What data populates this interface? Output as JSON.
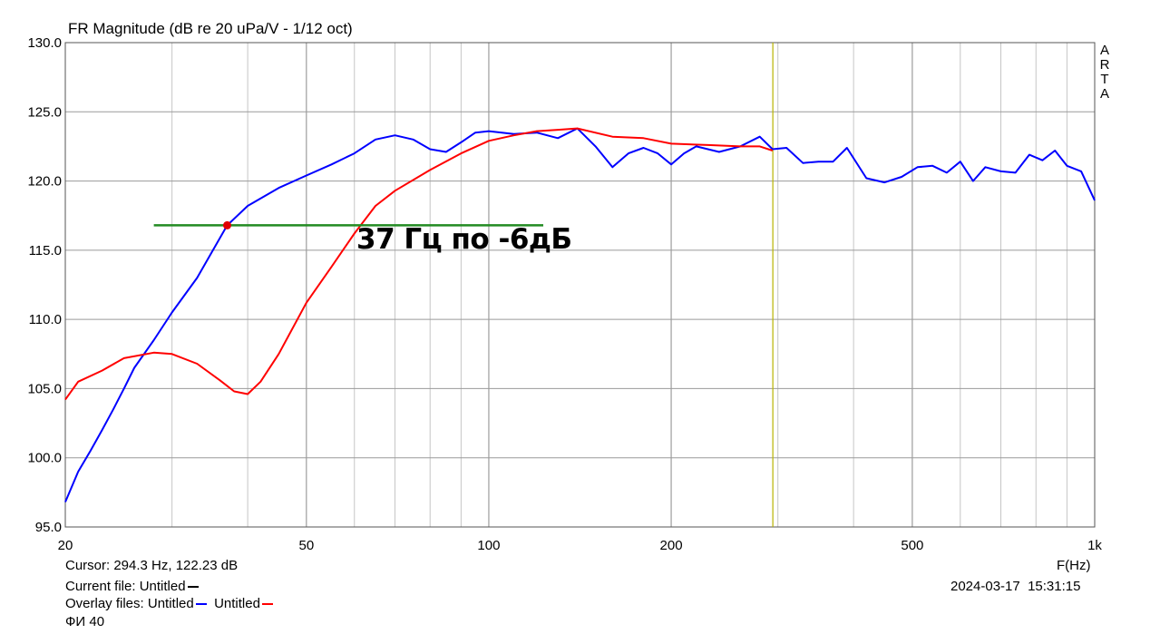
{
  "chart_data": {
    "type": "line",
    "title": "FR Magnitude (dB re 20 uPa/V - 1/12 oct)",
    "xlabel": "F(Hz)",
    "ylabel": "",
    "x_scale": "log",
    "xlim": [
      20,
      1000
    ],
    "ylim": [
      95,
      130
    ],
    "grid": true,
    "x_ticks": [
      {
        "value": 20,
        "label": "20"
      },
      {
        "value": 50,
        "label": "50"
      },
      {
        "value": 100,
        "label": "100"
      },
      {
        "value": 200,
        "label": "200"
      },
      {
        "value": 500,
        "label": "500"
      },
      {
        "value": 1000,
        "label": "1k"
      }
    ],
    "y_ticks": [
      {
        "value": 95,
        "label": "95.0"
      },
      {
        "value": 100,
        "label": "100.0"
      },
      {
        "value": 105,
        "label": "105.0"
      },
      {
        "value": 110,
        "label": "110.0"
      },
      {
        "value": 115,
        "label": "115.0"
      },
      {
        "value": 120,
        "label": "120.0"
      },
      {
        "value": 125,
        "label": "125.0"
      },
      {
        "value": 130,
        "label": "130.0"
      }
    ],
    "series": [
      {
        "color": "#0000ff",
        "points": [
          [
            20,
            96.8
          ],
          [
            21,
            99
          ],
          [
            22,
            100.5
          ],
          [
            23,
            102
          ],
          [
            24,
            103.5
          ],
          [
            25,
            105
          ],
          [
            26,
            106.5
          ],
          [
            28,
            108.5
          ],
          [
            30,
            110.5
          ],
          [
            33,
            113
          ],
          [
            37,
            116.8
          ],
          [
            40,
            118.2
          ],
          [
            45,
            119.5
          ],
          [
            50,
            120.4
          ],
          [
            55,
            121.2
          ],
          [
            60,
            122
          ],
          [
            65,
            123
          ],
          [
            70,
            123.3
          ],
          [
            75,
            123
          ],
          [
            80,
            122.3
          ],
          [
            85,
            122.1
          ],
          [
            90,
            122.8
          ],
          [
            95,
            123.5
          ],
          [
            100,
            123.6
          ],
          [
            110,
            123.4
          ],
          [
            120,
            123.5
          ],
          [
            130,
            123.1
          ],
          [
            140,
            123.8
          ],
          [
            150,
            122.5
          ],
          [
            160,
            121
          ],
          [
            170,
            122
          ],
          [
            180,
            122.4
          ],
          [
            190,
            122
          ],
          [
            200,
            121.2
          ],
          [
            210,
            122
          ],
          [
            220,
            122.5
          ],
          [
            240,
            122.1
          ],
          [
            260,
            122.5
          ],
          [
            280,
            123.2
          ],
          [
            294,
            122.3
          ],
          [
            310,
            122.4
          ],
          [
            330,
            121.3
          ],
          [
            350,
            121.4
          ],
          [
            370,
            121.4
          ],
          [
            390,
            122.4
          ],
          [
            420,
            120.2
          ],
          [
            450,
            119.9
          ],
          [
            480,
            120.3
          ],
          [
            510,
            121
          ],
          [
            540,
            121.1
          ],
          [
            570,
            120.6
          ],
          [
            600,
            121.4
          ],
          [
            630,
            120
          ],
          [
            660,
            121
          ],
          [
            700,
            120.7
          ],
          [
            740,
            120.6
          ],
          [
            780,
            121.9
          ],
          [
            820,
            121.5
          ],
          [
            860,
            122.2
          ],
          [
            900,
            121.1
          ],
          [
            950,
            120.7
          ],
          [
            1000,
            118.6
          ]
        ]
      },
      {
        "color": "#ff0000",
        "points": [
          [
            20,
            104.2
          ],
          [
            21,
            105.5
          ],
          [
            23,
            106.3
          ],
          [
            25,
            107.2
          ],
          [
            28,
            107.6
          ],
          [
            30,
            107.5
          ],
          [
            33,
            106.8
          ],
          [
            36,
            105.6
          ],
          [
            38,
            104.8
          ],
          [
            40,
            104.6
          ],
          [
            42,
            105.5
          ],
          [
            45,
            107.5
          ],
          [
            50,
            111.2
          ],
          [
            55,
            113.8
          ],
          [
            60,
            116.2
          ],
          [
            65,
            118.2
          ],
          [
            70,
            119.3
          ],
          [
            80,
            120.8
          ],
          [
            90,
            122
          ],
          [
            100,
            122.9
          ],
          [
            110,
            123.3
          ],
          [
            120,
            123.6
          ],
          [
            130,
            123.7
          ],
          [
            140,
            123.8
          ],
          [
            160,
            123.2
          ],
          [
            180,
            123.1
          ],
          [
            200,
            122.7
          ],
          [
            230,
            122.6
          ],
          [
            260,
            122.5
          ],
          [
            280,
            122.5
          ],
          [
            294,
            122.2
          ]
        ]
      }
    ],
    "marker": {
      "x": 37,
      "y": 116.8,
      "color": "#e00000"
    },
    "hline": {
      "x1": 28,
      "x2": 123,
      "y": 116.8,
      "color": "#228b22"
    },
    "cursor_x": 294.3,
    "cursor_color": "#b8b400",
    "annotation": "37 Гц по -6дБ",
    "brand_letters": [
      "A",
      "R",
      "T",
      "A"
    ]
  },
  "info": {
    "cursor": "Cursor: 294.3 Hz, 122.23 dB",
    "current_file_label": "Current file:",
    "current_file": "Untitled",
    "current_color": "#000000",
    "overlay_label": "Overlay files:",
    "overlay_1": "Untitled",
    "overlay_1_color": "#0000ff",
    "overlay_2": "Untitled",
    "overlay_2_color": "#ff0000",
    "note": "ФИ 40",
    "freq_label": "F(Hz)",
    "date": "2024-03-17",
    "time": "15:31:15"
  }
}
